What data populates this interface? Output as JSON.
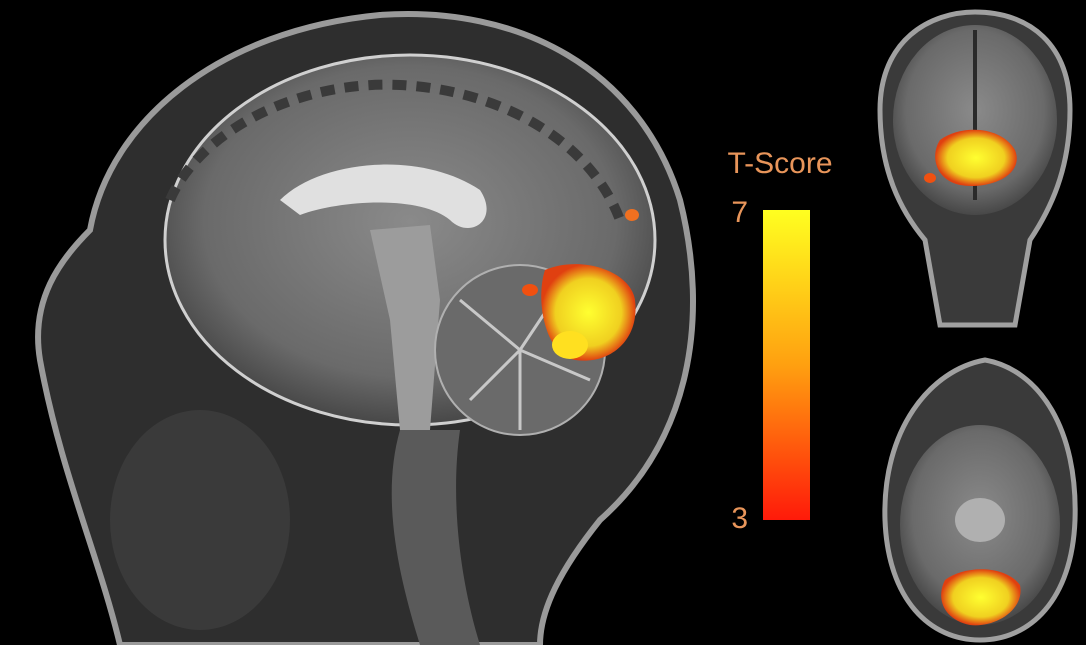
{
  "colorbar": {
    "title": "T-Score",
    "max_label": "7",
    "min_label": "3"
  }
}
